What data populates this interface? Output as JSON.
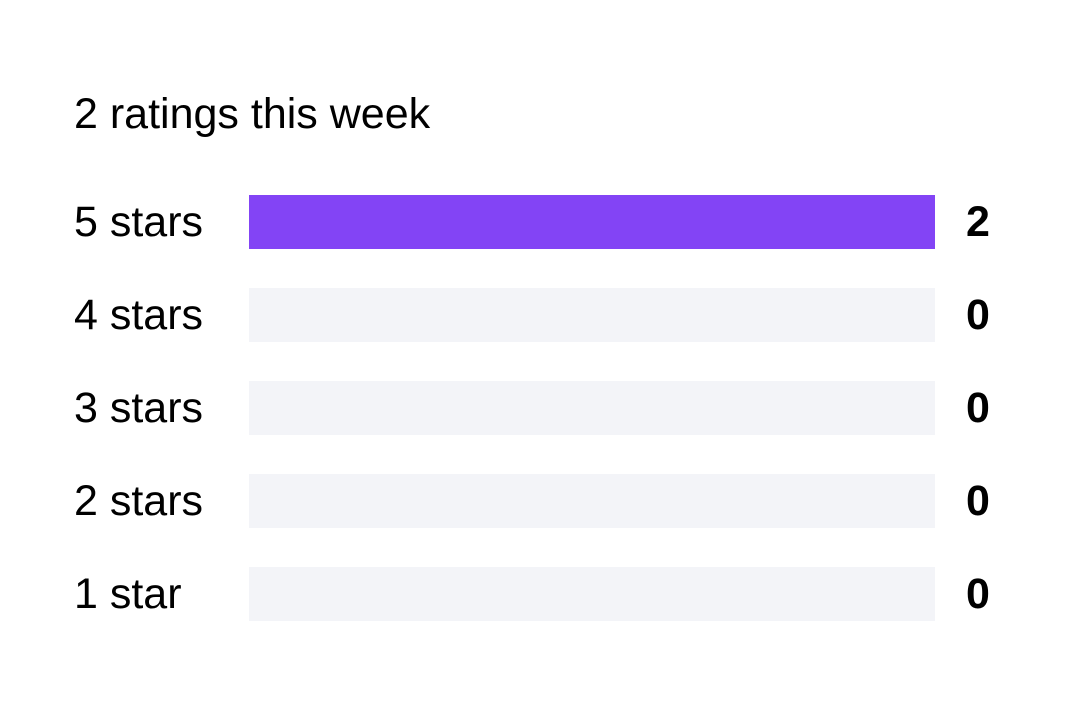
{
  "summary": "2 ratings this week",
  "colors": {
    "fill": "#8344f5",
    "track": "#f3f4f8"
  },
  "rows": [
    {
      "label": "5 stars",
      "count": "2",
      "fraction": 1.0
    },
    {
      "label": "4 stars",
      "count": "0",
      "fraction": 0.0
    },
    {
      "label": "3 stars",
      "count": "0",
      "fraction": 0.0
    },
    {
      "label": "2 stars",
      "count": "0",
      "fraction": 0.0
    },
    {
      "label": "1 star",
      "count": "0",
      "fraction": 0.0
    }
  ]
}
